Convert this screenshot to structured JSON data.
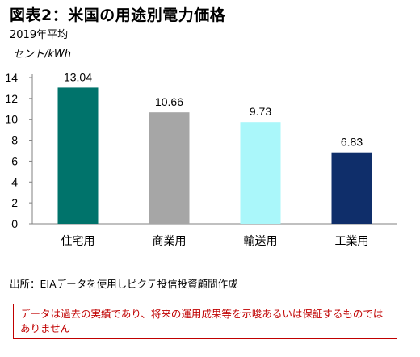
{
  "header": {
    "title": "図表2：米国の用途別電力価格",
    "subtitle": "2019年平均",
    "unit_label": "セント/kWh"
  },
  "chart_data": {
    "type": "bar",
    "title": "図表2：米国の用途別電力価格",
    "subtitle": "2019年平均",
    "ylabel": "セント/kWh",
    "xlabel": "",
    "categories": [
      "住宅用",
      "商業用",
      "輸送用",
      "工業用"
    ],
    "values": [
      13.04,
      10.66,
      9.73,
      6.83
    ],
    "value_labels": [
      "13.04",
      "10.66",
      "9.73",
      "6.83"
    ],
    "colors": [
      "#00736b",
      "#a6a6a6",
      "#aaf7fa",
      "#0f2e6a"
    ],
    "ylim": [
      0,
      14
    ],
    "yticks": [
      0,
      2,
      4,
      6,
      8,
      10,
      12,
      14
    ],
    "grid": false,
    "legend": "none"
  },
  "footer": {
    "source": "出所：EIAデータを使用しピクテ投信投資顧問作成",
    "disclaimer": "データは過去の実績であり、将来の運用成果等を示唆あるいは保証するものではありません"
  }
}
